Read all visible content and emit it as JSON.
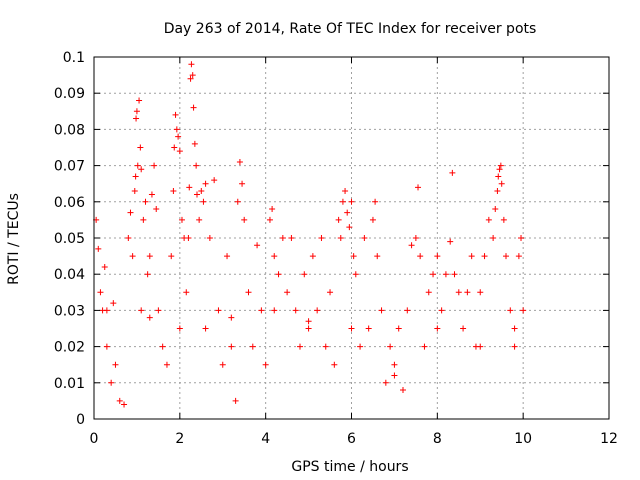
{
  "chart_data": {
    "type": "scatter",
    "title": "Day 263 of 2014, Rate Of TEC Index for receiver pots",
    "xlabel": "GPS time / hours",
    "ylabel": "ROTI / TECUs",
    "xlim": [
      0,
      12
    ],
    "ylim": [
      0,
      0.1
    ],
    "xticks": [
      0,
      2,
      4,
      6,
      8,
      10,
      12
    ],
    "xtick_labels": [
      "0",
      "2",
      "4",
      "6",
      "8",
      "10",
      "12"
    ],
    "yticks": [
      0,
      0.01,
      0.02,
      0.03,
      0.04,
      0.05,
      0.06,
      0.07,
      0.08,
      0.09,
      0.1
    ],
    "ytick_labels": [
      "0",
      "0.01",
      "0.02",
      "0.03",
      "0.04",
      "0.05",
      "0.06",
      "0.07",
      "0.08",
      "0.09",
      "0.1"
    ],
    "grid": true,
    "marker": "+",
    "color": "#ff0000",
    "series": [
      {
        "name": "ROTI",
        "points": [
          [
            0.05,
            0.055
          ],
          [
            0.1,
            0.047
          ],
          [
            0.15,
            0.035
          ],
          [
            0.2,
            0.03
          ],
          [
            0.25,
            0.042
          ],
          [
            0.3,
            0.02
          ],
          [
            0.4,
            0.01
          ],
          [
            0.5,
            0.015
          ],
          [
            0.6,
            0.005
          ],
          [
            0.7,
            0.004
          ],
          [
            0.8,
            0.05
          ],
          [
            0.85,
            0.057
          ],
          [
            0.9,
            0.045
          ],
          [
            0.95,
            0.063
          ],
          [
            0.97,
            0.067
          ],
          [
            0.98,
            0.083
          ],
          [
            1.0,
            0.085
          ],
          [
            1.02,
            0.07
          ],
          [
            1.05,
            0.088
          ],
          [
            1.08,
            0.075
          ],
          [
            1.1,
            0.069
          ],
          [
            1.15,
            0.055
          ],
          [
            1.2,
            0.06
          ],
          [
            1.25,
            0.04
          ],
          [
            1.3,
            0.045
          ],
          [
            1.35,
            0.062
          ],
          [
            1.4,
            0.07
          ],
          [
            1.45,
            0.058
          ],
          [
            1.5,
            0.03
          ],
          [
            1.6,
            0.02
          ],
          [
            1.7,
            0.015
          ],
          [
            1.8,
            0.045
          ],
          [
            1.85,
            0.063
          ],
          [
            1.87,
            0.075
          ],
          [
            1.9,
            0.084
          ],
          [
            1.93,
            0.08
          ],
          [
            1.96,
            0.078
          ],
          [
            2.0,
            0.074
          ],
          [
            2.05,
            0.055
          ],
          [
            2.1,
            0.05
          ],
          [
            2.15,
            0.035
          ],
          [
            2.2,
            0.05
          ],
          [
            2.22,
            0.064
          ],
          [
            2.25,
            0.094
          ],
          [
            2.27,
            0.098
          ],
          [
            2.3,
            0.095
          ],
          [
            2.32,
            0.086
          ],
          [
            2.35,
            0.076
          ],
          [
            2.38,
            0.07
          ],
          [
            2.4,
            0.062
          ],
          [
            2.45,
            0.055
          ],
          [
            2.5,
            0.063
          ],
          [
            2.55,
            0.06
          ],
          [
            2.6,
            0.065
          ],
          [
            2.7,
            0.05
          ],
          [
            2.8,
            0.066
          ],
          [
            2.9,
            0.03
          ],
          [
            3.0,
            0.015
          ],
          [
            3.1,
            0.045
          ],
          [
            3.2,
            0.02
          ],
          [
            3.3,
            0.005
          ],
          [
            3.35,
            0.06
          ],
          [
            3.4,
            0.071
          ],
          [
            3.45,
            0.065
          ],
          [
            3.5,
            0.055
          ],
          [
            3.6,
            0.035
          ],
          [
            3.7,
            0.02
          ],
          [
            3.8,
            0.048
          ],
          [
            3.9,
            0.03
          ],
          [
            4.0,
            0.015
          ],
          [
            4.1,
            0.055
          ],
          [
            4.15,
            0.058
          ],
          [
            4.2,
            0.045
          ],
          [
            4.3,
            0.04
          ],
          [
            4.4,
            0.05
          ],
          [
            4.5,
            0.035
          ],
          [
            4.6,
            0.05
          ],
          [
            4.7,
            0.03
          ],
          [
            4.8,
            0.02
          ],
          [
            4.9,
            0.04
          ],
          [
            5.0,
            0.025
          ],
          [
            5.1,
            0.045
          ],
          [
            5.2,
            0.03
          ],
          [
            5.3,
            0.05
          ],
          [
            5.4,
            0.02
          ],
          [
            5.5,
            0.035
          ],
          [
            5.6,
            0.015
          ],
          [
            5.7,
            0.055
          ],
          [
            5.75,
            0.05
          ],
          [
            5.8,
            0.06
          ],
          [
            5.85,
            0.063
          ],
          [
            5.9,
            0.057
          ],
          [
            5.95,
            0.053
          ],
          [
            6.0,
            0.06
          ],
          [
            6.05,
            0.045
          ],
          [
            6.1,
            0.04
          ],
          [
            6.2,
            0.02
          ],
          [
            6.3,
            0.05
          ],
          [
            6.4,
            0.025
          ],
          [
            6.5,
            0.055
          ],
          [
            6.55,
            0.06
          ],
          [
            6.6,
            0.045
          ],
          [
            6.7,
            0.03
          ],
          [
            6.8,
            0.01
          ],
          [
            6.9,
            0.02
          ],
          [
            7.0,
            0.012
          ],
          [
            7.1,
            0.025
          ],
          [
            7.2,
            0.008
          ],
          [
            7.3,
            0.03
          ],
          [
            7.4,
            0.048
          ],
          [
            7.5,
            0.05
          ],
          [
            7.55,
            0.064
          ],
          [
            7.6,
            0.045
          ],
          [
            7.7,
            0.02
          ],
          [
            7.8,
            0.035
          ],
          [
            7.9,
            0.04
          ],
          [
            8.0,
            0.045
          ],
          [
            8.1,
            0.03
          ],
          [
            8.2,
            0.04
          ],
          [
            8.3,
            0.049
          ],
          [
            8.35,
            0.068
          ],
          [
            8.4,
            0.04
          ],
          [
            8.5,
            0.035
          ],
          [
            8.6,
            0.025
          ],
          [
            8.7,
            0.035
          ],
          [
            8.8,
            0.045
          ],
          [
            8.9,
            0.02
          ],
          [
            9.0,
            0.035
          ],
          [
            9.1,
            0.045
          ],
          [
            9.2,
            0.055
          ],
          [
            9.3,
            0.05
          ],
          [
            9.35,
            0.058
          ],
          [
            9.4,
            0.063
          ],
          [
            9.42,
            0.067
          ],
          [
            9.45,
            0.069
          ],
          [
            9.48,
            0.07
          ],
          [
            9.5,
            0.065
          ],
          [
            9.55,
            0.055
          ],
          [
            9.6,
            0.045
          ],
          [
            9.7,
            0.03
          ],
          [
            9.8,
            0.02
          ],
          [
            9.9,
            0.045
          ],
          [
            9.95,
            0.05
          ],
          [
            10.0,
            0.03
          ],
          [
            0.3,
            0.03
          ],
          [
            0.45,
            0.032
          ],
          [
            1.1,
            0.03
          ],
          [
            1.3,
            0.028
          ],
          [
            2.0,
            0.025
          ],
          [
            2.6,
            0.025
          ],
          [
            3.2,
            0.028
          ],
          [
            4.2,
            0.03
          ],
          [
            5.0,
            0.027
          ],
          [
            6.0,
            0.025
          ],
          [
            7.0,
            0.015
          ],
          [
            8.0,
            0.025
          ],
          [
            9.0,
            0.02
          ],
          [
            9.8,
            0.025
          ]
        ]
      }
    ]
  }
}
